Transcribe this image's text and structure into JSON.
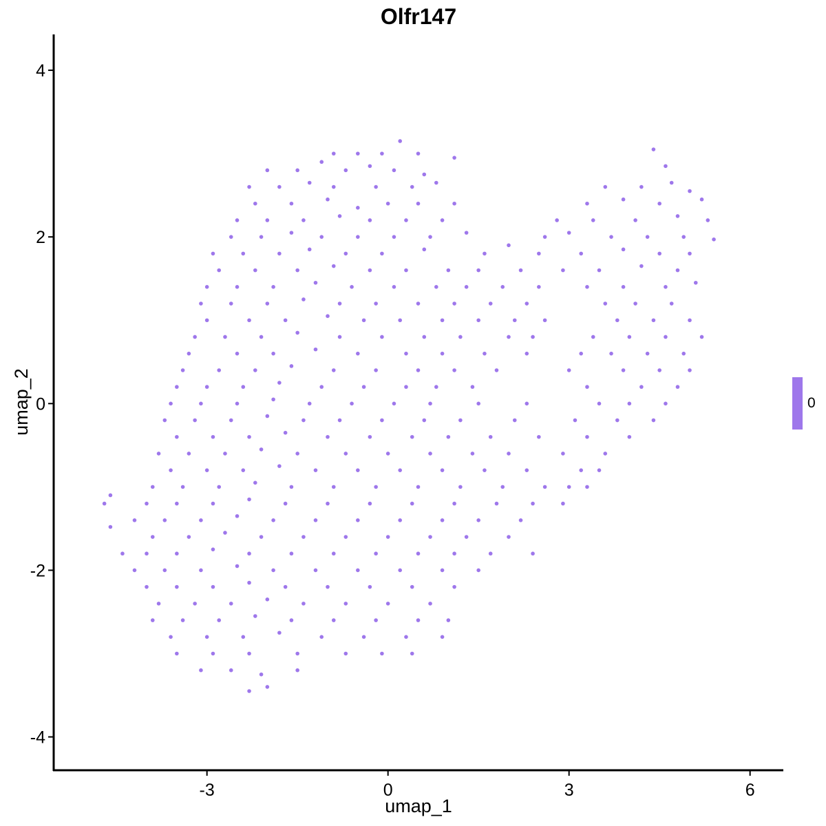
{
  "chart_data": {
    "type": "scatter",
    "title": "Olfr147",
    "xlabel": "umap_1",
    "ylabel": "umap_2",
    "xlim": [
      -5.54,
      6.54
    ],
    "ylim": [
      -4.4,
      4.43
    ],
    "xticks": [
      -3,
      0,
      3,
      6
    ],
    "yticks": [
      -4,
      -2,
      0,
      2,
      4
    ],
    "grid": false,
    "point_color": "#9e77eb",
    "legend": {
      "type": "colorbar",
      "placement": "right",
      "labels": [
        "0"
      ],
      "color": "#9e77eb"
    },
    "points": [
      [
        -0.9,
        3.0
      ],
      [
        -0.5,
        3.0
      ],
      [
        -0.1,
        3.0
      ],
      [
        0.2,
        3.15
      ],
      [
        0.5,
        3.0
      ],
      [
        -2.0,
        2.8
      ],
      [
        -1.5,
        2.8
      ],
      [
        -1.1,
        2.9
      ],
      [
        -0.7,
        2.8
      ],
      [
        -0.3,
        2.85
      ],
      [
        0.1,
        2.8
      ],
      [
        0.6,
        2.75
      ],
      [
        1.1,
        2.95
      ],
      [
        4.4,
        3.05
      ],
      [
        4.6,
        2.85
      ],
      [
        -2.3,
        2.6
      ],
      [
        -1.8,
        2.6
      ],
      [
        -1.3,
        2.65
      ],
      [
        -0.9,
        2.6
      ],
      [
        -0.2,
        2.6
      ],
      [
        0.4,
        2.6
      ],
      [
        0.8,
        2.65
      ],
      [
        3.6,
        2.6
      ],
      [
        4.2,
        2.6
      ],
      [
        4.7,
        2.65
      ],
      [
        5.0,
        2.55
      ],
      [
        -2.2,
        2.4
      ],
      [
        -1.6,
        2.4
      ],
      [
        -1.0,
        2.45
      ],
      [
        -0.5,
        2.35
      ],
      [
        0.0,
        2.4
      ],
      [
        0.5,
        2.4
      ],
      [
        1.1,
        2.4
      ],
      [
        3.3,
        2.4
      ],
      [
        3.9,
        2.45
      ],
      [
        4.5,
        2.4
      ],
      [
        5.2,
        2.45
      ],
      [
        -2.5,
        2.2
      ],
      [
        -2.0,
        2.2
      ],
      [
        -1.4,
        2.2
      ],
      [
        -0.8,
        2.25
      ],
      [
        -0.3,
        2.2
      ],
      [
        0.3,
        2.2
      ],
      [
        0.9,
        2.2
      ],
      [
        2.8,
        2.2
      ],
      [
        3.4,
        2.2
      ],
      [
        4.1,
        2.2
      ],
      [
        4.8,
        2.25
      ],
      [
        5.3,
        2.2
      ],
      [
        -2.6,
        2.0
      ],
      [
        -2.1,
        2.0
      ],
      [
        -1.6,
        2.05
      ],
      [
        -1.1,
        2.0
      ],
      [
        -0.5,
        2.0
      ],
      [
        0.1,
        2.0
      ],
      [
        0.7,
        2.0
      ],
      [
        1.3,
        2.05
      ],
      [
        2.6,
        2.0
      ],
      [
        3.0,
        2.05
      ],
      [
        3.7,
        2.0
      ],
      [
        4.3,
        2.0
      ],
      [
        4.9,
        2.0
      ],
      [
        5.4,
        1.97
      ],
      [
        -2.9,
        1.8
      ],
      [
        -2.4,
        1.8
      ],
      [
        -1.8,
        1.8
      ],
      [
        -1.3,
        1.85
      ],
      [
        -0.7,
        1.8
      ],
      [
        -0.1,
        1.8
      ],
      [
        0.6,
        1.85
      ],
      [
        1.6,
        1.8
      ],
      [
        2.0,
        1.9
      ],
      [
        2.5,
        1.8
      ],
      [
        3.2,
        1.8
      ],
      [
        3.9,
        1.85
      ],
      [
        4.5,
        1.8
      ],
      [
        5.0,
        1.8
      ],
      [
        -2.8,
        1.6
      ],
      [
        -2.2,
        1.6
      ],
      [
        -1.5,
        1.6
      ],
      [
        -0.9,
        1.65
      ],
      [
        -0.3,
        1.6
      ],
      [
        0.3,
        1.6
      ],
      [
        1.0,
        1.6
      ],
      [
        1.5,
        1.6
      ],
      [
        2.2,
        1.6
      ],
      [
        2.9,
        1.6
      ],
      [
        3.5,
        1.6
      ],
      [
        4.2,
        1.65
      ],
      [
        4.8,
        1.6
      ],
      [
        -3.0,
        1.4
      ],
      [
        -2.5,
        1.4
      ],
      [
        -1.9,
        1.4
      ],
      [
        -1.2,
        1.45
      ],
      [
        -0.6,
        1.4
      ],
      [
        0.1,
        1.4
      ],
      [
        0.8,
        1.4
      ],
      [
        1.3,
        1.4
      ],
      [
        1.9,
        1.4
      ],
      [
        2.5,
        1.4
      ],
      [
        3.3,
        1.4
      ],
      [
        3.9,
        1.4
      ],
      [
        4.6,
        1.4
      ],
      [
        5.1,
        1.45
      ],
      [
        -3.1,
        1.2
      ],
      [
        -2.6,
        1.2
      ],
      [
        -2.0,
        1.2
      ],
      [
        -1.4,
        1.25
      ],
      [
        -0.8,
        1.2
      ],
      [
        -0.2,
        1.2
      ],
      [
        0.5,
        1.2
      ],
      [
        1.1,
        1.2
      ],
      [
        1.7,
        1.2
      ],
      [
        2.3,
        1.2
      ],
      [
        3.6,
        1.2
      ],
      [
        4.1,
        1.2
      ],
      [
        4.7,
        1.2
      ],
      [
        -3.0,
        1.0
      ],
      [
        -2.3,
        1.0
      ],
      [
        -1.7,
        1.0
      ],
      [
        -1.0,
        1.05
      ],
      [
        -0.4,
        1.0
      ],
      [
        0.2,
        1.0
      ],
      [
        0.9,
        1.0
      ],
      [
        1.5,
        1.0
      ],
      [
        2.1,
        1.0
      ],
      [
        2.6,
        1.0
      ],
      [
        3.8,
        1.0
      ],
      [
        4.4,
        1.0
      ],
      [
        5.0,
        1.0
      ],
      [
        -3.2,
        0.8
      ],
      [
        -2.7,
        0.8
      ],
      [
        -2.1,
        0.8
      ],
      [
        -1.5,
        0.85
      ],
      [
        -0.8,
        0.8
      ],
      [
        -0.1,
        0.8
      ],
      [
        0.6,
        0.8
      ],
      [
        1.2,
        0.8
      ],
      [
        2.0,
        0.8
      ],
      [
        2.4,
        0.8
      ],
      [
        3.4,
        0.8
      ],
      [
        4.0,
        0.8
      ],
      [
        4.6,
        0.8
      ],
      [
        5.2,
        0.8
      ],
      [
        -3.3,
        0.6
      ],
      [
        -2.5,
        0.6
      ],
      [
        -1.9,
        0.6
      ],
      [
        -1.2,
        0.65
      ],
      [
        -0.5,
        0.6
      ],
      [
        0.3,
        0.6
      ],
      [
        0.9,
        0.6
      ],
      [
        1.6,
        0.6
      ],
      [
        2.3,
        0.6
      ],
      [
        3.2,
        0.6
      ],
      [
        3.7,
        0.6
      ],
      [
        4.3,
        0.6
      ],
      [
        4.9,
        0.6
      ],
      [
        -3.4,
        0.4
      ],
      [
        -2.8,
        0.4
      ],
      [
        -2.2,
        0.4
      ],
      [
        -1.6,
        0.45
      ],
      [
        -0.9,
        0.4
      ],
      [
        -0.2,
        0.4
      ],
      [
        0.5,
        0.4
      ],
      [
        1.1,
        0.4
      ],
      [
        1.8,
        0.4
      ],
      [
        3.0,
        0.4
      ],
      [
        3.9,
        0.4
      ],
      [
        4.5,
        0.4
      ],
      [
        5.0,
        0.4
      ],
      [
        -3.5,
        0.2
      ],
      [
        -3.0,
        0.2
      ],
      [
        -2.4,
        0.2
      ],
      [
        -1.8,
        0.25
      ],
      [
        -1.1,
        0.2
      ],
      [
        -0.4,
        0.2
      ],
      [
        0.3,
        0.2
      ],
      [
        0.8,
        0.2
      ],
      [
        1.4,
        0.2
      ],
      [
        3.3,
        0.2
      ],
      [
        4.2,
        0.2
      ],
      [
        4.8,
        0.2
      ],
      [
        -3.6,
        0.0
      ],
      [
        -3.1,
        0.0
      ],
      [
        -2.5,
        0.0
      ],
      [
        -1.9,
        0.05
      ],
      [
        -1.3,
        0.0
      ],
      [
        -0.6,
        0.0
      ],
      [
        0.1,
        0.0
      ],
      [
        0.7,
        0.0
      ],
      [
        1.5,
        0.0
      ],
      [
        2.3,
        0.0
      ],
      [
        3.5,
        0.0
      ],
      [
        4.0,
        0.0
      ],
      [
        4.6,
        0.0
      ],
      [
        -3.7,
        -0.2
      ],
      [
        -3.2,
        -0.2
      ],
      [
        -2.6,
        -0.2
      ],
      [
        -2.0,
        -0.15
      ],
      [
        -1.4,
        -0.2
      ],
      [
        -0.8,
        -0.2
      ],
      [
        -0.1,
        -0.2
      ],
      [
        0.6,
        -0.2
      ],
      [
        1.2,
        -0.2
      ],
      [
        2.1,
        -0.2
      ],
      [
        3.1,
        -0.2
      ],
      [
        3.8,
        -0.2
      ],
      [
        4.4,
        -0.2
      ],
      [
        -3.5,
        -0.4
      ],
      [
        -2.9,
        -0.4
      ],
      [
        -2.3,
        -0.4
      ],
      [
        -1.7,
        -0.35
      ],
      [
        -1.0,
        -0.4
      ],
      [
        -0.3,
        -0.4
      ],
      [
        0.4,
        -0.4
      ],
      [
        1.0,
        -0.4
      ],
      [
        1.7,
        -0.4
      ],
      [
        2.5,
        -0.4
      ],
      [
        3.3,
        -0.4
      ],
      [
        4.0,
        -0.4
      ],
      [
        -3.8,
        -0.6
      ],
      [
        -3.3,
        -0.6
      ],
      [
        -2.7,
        -0.6
      ],
      [
        -2.1,
        -0.55
      ],
      [
        -1.5,
        -0.6
      ],
      [
        -0.7,
        -0.6
      ],
      [
        0.0,
        -0.6
      ],
      [
        0.7,
        -0.6
      ],
      [
        1.4,
        -0.6
      ],
      [
        2.0,
        -0.6
      ],
      [
        2.9,
        -0.6
      ],
      [
        3.6,
        -0.6
      ],
      [
        -3.6,
        -0.8
      ],
      [
        -3.0,
        -0.8
      ],
      [
        -2.4,
        -0.8
      ],
      [
        -1.8,
        -0.75
      ],
      [
        -1.2,
        -0.8
      ],
      [
        -0.5,
        -0.8
      ],
      [
        0.2,
        -0.8
      ],
      [
        0.9,
        -0.8
      ],
      [
        1.6,
        -0.8
      ],
      [
        2.3,
        -0.8
      ],
      [
        3.2,
        -0.8
      ],
      [
        3.5,
        -0.8
      ],
      [
        -3.9,
        -1.0
      ],
      [
        -3.4,
        -1.0
      ],
      [
        -2.8,
        -1.0
      ],
      [
        -2.2,
        -0.95
      ],
      [
        -1.6,
        -1.0
      ],
      [
        -0.9,
        -1.0
      ],
      [
        -0.2,
        -1.0
      ],
      [
        0.5,
        -1.0
      ],
      [
        1.2,
        -1.0
      ],
      [
        1.9,
        -1.0
      ],
      [
        2.6,
        -1.0
      ],
      [
        3.0,
        -1.0
      ],
      [
        3.3,
        -1.0
      ],
      [
        -4.7,
        -1.2
      ],
      [
        -4.6,
        -1.1
      ],
      [
        -4.0,
        -1.2
      ],
      [
        -3.5,
        -1.2
      ],
      [
        -2.9,
        -1.2
      ],
      [
        -2.3,
        -1.15
      ],
      [
        -1.7,
        -1.2
      ],
      [
        -1.0,
        -1.2
      ],
      [
        -0.3,
        -1.2
      ],
      [
        0.4,
        -1.2
      ],
      [
        1.1,
        -1.2
      ],
      [
        1.8,
        -1.2
      ],
      [
        2.4,
        -1.2
      ],
      [
        2.9,
        -1.2
      ],
      [
        -4.2,
        -1.4
      ],
      [
        -3.7,
        -1.4
      ],
      [
        -3.1,
        -1.4
      ],
      [
        -2.5,
        -1.35
      ],
      [
        -1.9,
        -1.4
      ],
      [
        -1.2,
        -1.4
      ],
      [
        -0.5,
        -1.4
      ],
      [
        0.2,
        -1.4
      ],
      [
        0.9,
        -1.4
      ],
      [
        1.5,
        -1.4
      ],
      [
        2.2,
        -1.4
      ],
      [
        -4.6,
        -1.48
      ],
      [
        -3.9,
        -1.6
      ],
      [
        -3.3,
        -1.6
      ],
      [
        -2.7,
        -1.55
      ],
      [
        -2.1,
        -1.6
      ],
      [
        -1.4,
        -1.6
      ],
      [
        -0.7,
        -1.6
      ],
      [
        0.0,
        -1.6
      ],
      [
        0.7,
        -1.6
      ],
      [
        1.3,
        -1.6
      ],
      [
        2.0,
        -1.6
      ],
      [
        -4.4,
        -1.8
      ],
      [
        -4.0,
        -1.8
      ],
      [
        -3.5,
        -1.8
      ],
      [
        -2.9,
        -1.75
      ],
      [
        -2.3,
        -1.8
      ],
      [
        -1.6,
        -1.8
      ],
      [
        -0.9,
        -1.8
      ],
      [
        -0.2,
        -1.8
      ],
      [
        0.5,
        -1.8
      ],
      [
        1.1,
        -1.8
      ],
      [
        1.7,
        -1.8
      ],
      [
        2.4,
        -1.8
      ],
      [
        -4.2,
        -2.0
      ],
      [
        -3.7,
        -2.0
      ],
      [
        -3.1,
        -2.0
      ],
      [
        -2.5,
        -1.95
      ],
      [
        -1.9,
        -2.0
      ],
      [
        -1.2,
        -2.0
      ],
      [
        -0.5,
        -2.0
      ],
      [
        0.2,
        -2.0
      ],
      [
        0.9,
        -2.0
      ],
      [
        1.5,
        -2.0
      ],
      [
        -4.0,
        -2.2
      ],
      [
        -3.5,
        -2.2
      ],
      [
        -2.9,
        -2.2
      ],
      [
        -2.3,
        -2.15
      ],
      [
        -1.7,
        -2.2
      ],
      [
        -1.0,
        -2.2
      ],
      [
        -0.3,
        -2.2
      ],
      [
        0.4,
        -2.2
      ],
      [
        1.1,
        -2.2
      ],
      [
        -3.8,
        -2.4
      ],
      [
        -3.2,
        -2.4
      ],
      [
        -2.6,
        -2.4
      ],
      [
        -2.0,
        -2.35
      ],
      [
        -1.4,
        -2.4
      ],
      [
        -0.7,
        -2.4
      ],
      [
        0.0,
        -2.4
      ],
      [
        0.7,
        -2.4
      ],
      [
        -3.9,
        -2.6
      ],
      [
        -3.4,
        -2.6
      ],
      [
        -2.8,
        -2.6
      ],
      [
        -2.2,
        -2.55
      ],
      [
        -1.6,
        -2.6
      ],
      [
        -0.9,
        -2.6
      ],
      [
        -0.2,
        -2.6
      ],
      [
        0.5,
        -2.6
      ],
      [
        1.0,
        -2.6
      ],
      [
        -3.6,
        -2.8
      ],
      [
        -3.0,
        -2.8
      ],
      [
        -2.4,
        -2.8
      ],
      [
        -1.8,
        -2.75
      ],
      [
        -1.1,
        -2.8
      ],
      [
        -0.4,
        -2.8
      ],
      [
        0.3,
        -2.8
      ],
      [
        0.9,
        -2.8
      ],
      [
        -3.5,
        -3.0
      ],
      [
        -2.9,
        -3.0
      ],
      [
        -2.3,
        -3.0
      ],
      [
        -1.5,
        -3.0
      ],
      [
        -0.7,
        -3.0
      ],
      [
        -0.1,
        -3.0
      ],
      [
        0.4,
        -3.0
      ],
      [
        -3.1,
        -3.2
      ],
      [
        -2.6,
        -3.2
      ],
      [
        -2.1,
        -3.25
      ],
      [
        -1.5,
        -3.2
      ],
      [
        -2.3,
        -3.45
      ],
      [
        -2.0,
        -3.4
      ]
    ]
  }
}
